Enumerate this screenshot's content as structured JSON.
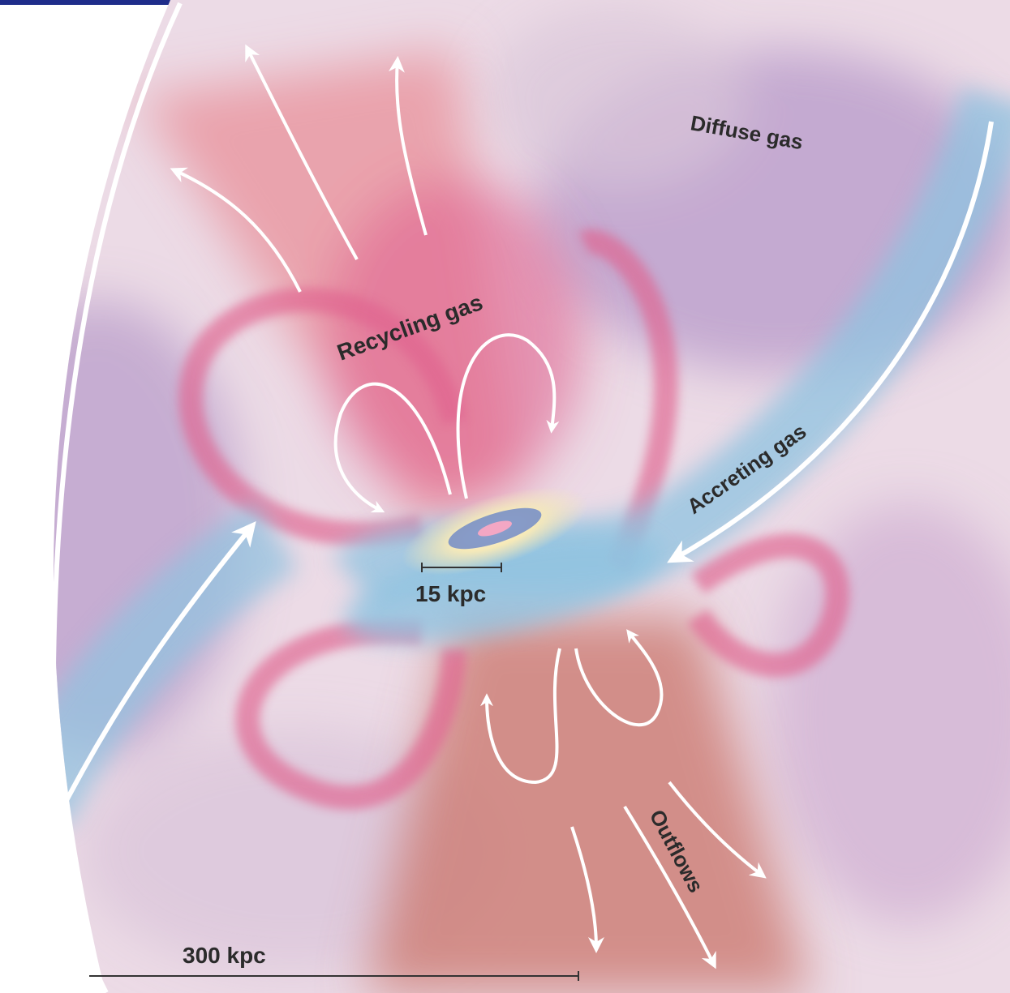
{
  "colors": {
    "diffuse_gas": "#b79ac9",
    "recycling_gas": "#e0648f",
    "accreting_gas": "#8fc3e0",
    "outflows": "#cc7a72",
    "arrows": "#ffffff",
    "labels": "#2b2b2b",
    "header_rule": "#1f2d8a"
  },
  "labels": {
    "diffuse_gas": "Diffuse gas",
    "recycling_gas": "Recycling gas",
    "accreting_gas": "Accreting gas",
    "outflows": "Outflows"
  },
  "scale_bars": {
    "inner": "15 kpc",
    "outer": "300 kpc"
  }
}
